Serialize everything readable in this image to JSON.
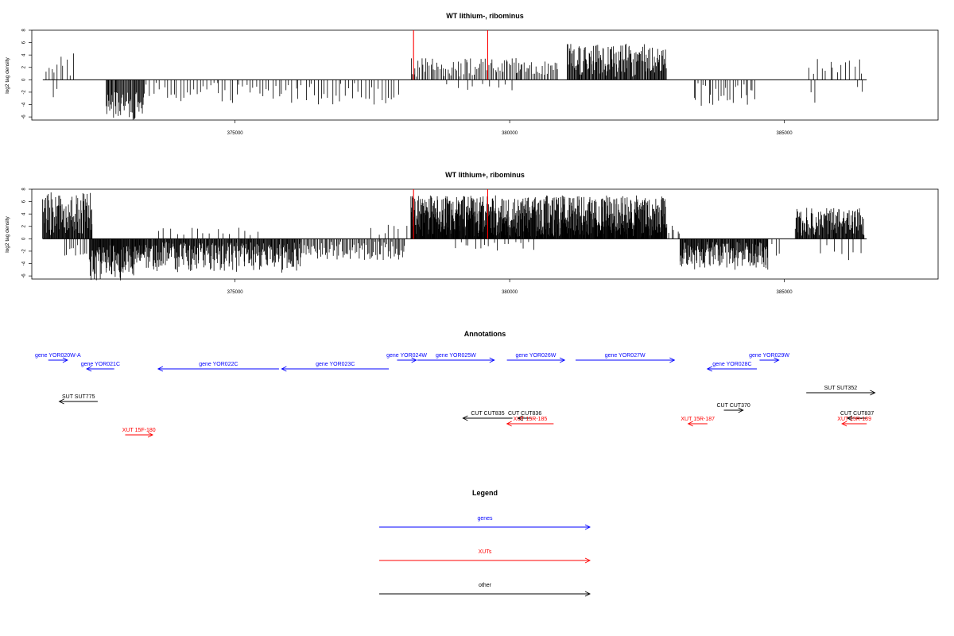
{
  "colors": {
    "gene": "#0000ff",
    "xut": "#ff0000",
    "other": "#000000",
    "marker": "#ff0000"
  },
  "chart_data": [
    {
      "type": "bar",
      "title": "WT lithium-, ribominus",
      "ylabel": "log2 tag density",
      "xlim": [
        371300,
        387800
      ],
      "ylim": [
        -6.5,
        8
      ],
      "yticks": [
        8,
        6,
        4,
        2,
        0,
        -2,
        -4,
        -6
      ],
      "xticks": [
        375000,
        380000,
        385000
      ],
      "baseline_range": [
        371500,
        386500
      ],
      "markers": [
        378250,
        379600
      ],
      "segments": [
        {
          "from": 371550,
          "to": 372050,
          "step": 55,
          "min": 0.3,
          "max": 4.5
        },
        {
          "from": 371700,
          "to": 371800,
          "step": 60,
          "min": -3.0,
          "max": -1.0
        },
        {
          "from": 372650,
          "to": 373350,
          "step": 14,
          "min": -6.5,
          "max": -2.0
        },
        {
          "from": 373400,
          "to": 378000,
          "step": 60,
          "min": -4.0,
          "max": -0.3
        },
        {
          "from": 378200,
          "to": 380200,
          "step": 28,
          "min": 0.5,
          "max": 3.5
        },
        {
          "from": 378900,
          "to": 380100,
          "step": 150,
          "min": -2.0,
          "max": -0.5
        },
        {
          "from": 380150,
          "to": 380900,
          "step": 28,
          "min": 0.5,
          "max": 3.0
        },
        {
          "from": 381050,
          "to": 382850,
          "step": 12,
          "min": 0.5,
          "max": 5.8
        },
        {
          "from": 383350,
          "to": 384500,
          "step": 45,
          "min": -4.5,
          "max": -0.5
        },
        {
          "from": 385450,
          "to": 386450,
          "step": 75,
          "min": 0.5,
          "max": 3.4
        },
        {
          "from": 385500,
          "to": 385600,
          "step": 60,
          "min": -4.0,
          "max": -2.0
        },
        {
          "from": 386350,
          "to": 386450,
          "step": 60,
          "min": -2.5,
          "max": -1.0
        }
      ]
    },
    {
      "type": "bar",
      "title": "WT lithium+, ribominus",
      "ylabel": "log2 tag density",
      "xlim": [
        371300,
        387800
      ],
      "ylim": [
        -6.5,
        8
      ],
      "yticks": [
        8,
        6,
        4,
        2,
        0,
        -2,
        -4,
        -6
      ],
      "xticks": [
        375000,
        380000,
        385000
      ],
      "baseline_range": [
        371500,
        386500
      ],
      "markers": [
        378250,
        379600
      ],
      "segments": [
        {
          "from": 371500,
          "to": 372400,
          "step": 10,
          "min": 0.5,
          "max": 7.5
        },
        {
          "from": 371900,
          "to": 372300,
          "step": 40,
          "min": -4.0,
          "max": -1.0
        },
        {
          "from": 372350,
          "to": 373350,
          "step": 9,
          "min": -6.8,
          "max": -1.0
        },
        {
          "from": 373350,
          "to": 376200,
          "step": 11,
          "min": -5.5,
          "max": -0.5
        },
        {
          "from": 373600,
          "to": 375500,
          "step": 120,
          "min": 0.5,
          "max": 1.8
        },
        {
          "from": 376200,
          "to": 378100,
          "step": 22,
          "min": -3.5,
          "max": -0.3
        },
        {
          "from": 377500,
          "to": 378100,
          "step": 100,
          "min": 0.5,
          "max": 2.5
        },
        {
          "from": 378200,
          "to": 382850,
          "step": 7,
          "min": 0.3,
          "max": 7.0
        },
        {
          "from": 379000,
          "to": 380500,
          "step": 90,
          "min": -2.0,
          "max": -0.5
        },
        {
          "from": 382850,
          "to": 383100,
          "step": 50,
          "min": 0.5,
          "max": 2.5
        },
        {
          "from": 383100,
          "to": 384700,
          "step": 10,
          "min": -5.0,
          "max": -0.5
        },
        {
          "from": 384300,
          "to": 385000,
          "step": 90,
          "min": -3.0,
          "max": -0.5
        },
        {
          "from": 385200,
          "to": 386450,
          "step": 10,
          "min": 0.5,
          "max": 5.0
        },
        {
          "from": 385700,
          "to": 386450,
          "step": 110,
          "min": -4.0,
          "max": -1.0
        }
      ]
    }
  ],
  "annotations": {
    "title": "Annotations",
    "items": [
      {
        "label": "gene YOR020W-A",
        "start": 371600,
        "end": 371950,
        "strand": "+",
        "kind": "gene",
        "row": 0
      },
      {
        "label": "gene YOR021C",
        "start": 372300,
        "end": 372800,
        "strand": "-",
        "kind": "gene",
        "row": 1
      },
      {
        "label": "gene YOR022C",
        "start": 373600,
        "end": 375800,
        "strand": "-",
        "kind": "gene",
        "row": 1
      },
      {
        "label": "gene YOR023C",
        "start": 375850,
        "end": 377800,
        "strand": "-",
        "kind": "gene",
        "row": 1
      },
      {
        "label": "gene YOR024W",
        "start": 377950,
        "end": 378300,
        "strand": "+",
        "kind": "gene",
        "row": 0
      },
      {
        "label": "gene YOR025W",
        "start": 378320,
        "end": 379720,
        "strand": "+",
        "kind": "gene",
        "row": 0
      },
      {
        "label": "gene YOR026W",
        "start": 379950,
        "end": 381000,
        "strand": "+",
        "kind": "gene",
        "row": 0
      },
      {
        "label": "gene YOR027W",
        "start": 381200,
        "end": 383000,
        "strand": "+",
        "kind": "gene",
        "row": 0
      },
      {
        "label": "gene YOR028C",
        "start": 383600,
        "end": 384500,
        "strand": "-",
        "kind": "gene",
        "row": 1
      },
      {
        "label": "gene YOR029W",
        "start": 384550,
        "end": 384900,
        "strand": "+",
        "kind": "gene",
        "row": 0
      },
      {
        "label": "SUT SUT775",
        "start": 371800,
        "end": 372500,
        "strand": "-",
        "kind": "other",
        "row": 2
      },
      {
        "label": "SUT SUT352",
        "start": 385400,
        "end": 386650,
        "strand": "+",
        "kind": "other",
        "row": 3
      },
      {
        "label": "CUT CUT835",
        "start": 379150,
        "end": 380050,
        "strand": "-",
        "kind": "other",
        "row": 4
      },
      {
        "label": "CUT CUT836",
        "start": 380150,
        "end": 380400,
        "strand": "-",
        "kind": "other",
        "row": 4
      },
      {
        "label": "CUT CUT370",
        "start": 383900,
        "end": 384250,
        "strand": "+",
        "kind": "other",
        "row": 5
      },
      {
        "label": "CUT CUT837",
        "start": 386150,
        "end": 386500,
        "strand": "-",
        "kind": "other",
        "row": 4
      },
      {
        "label": "XUT 15F-180",
        "start": 373000,
        "end": 373500,
        "strand": "+",
        "kind": "xut",
        "row": 6
      },
      {
        "label": "XUT 15R-185",
        "start": 379950,
        "end": 380800,
        "strand": "-",
        "kind": "xut",
        "row": 7
      },
      {
        "label": "XUT 15R-187",
        "start": 383250,
        "end": 383600,
        "strand": "-",
        "kind": "xut",
        "row": 7
      },
      {
        "label": "XUT 15R-189",
        "start": 386050,
        "end": 386500,
        "strand": "-",
        "kind": "xut",
        "row": 7
      }
    ]
  },
  "legend": {
    "title": "Legend",
    "items": [
      {
        "label": "genes",
        "kind": "gene"
      },
      {
        "label": "XUTs",
        "kind": "xut"
      },
      {
        "label": "other",
        "kind": "other"
      }
    ]
  }
}
